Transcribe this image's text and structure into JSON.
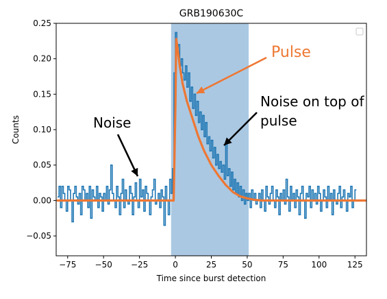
{
  "chart_data": {
    "type": "line",
    "title": "GRB190630C",
    "xlabel": "Time since burst detection",
    "ylabel": "Counts",
    "xlim": [
      -83,
      133
    ],
    "ylim": [
      -0.078,
      0.25
    ],
    "xticks": [
      -75,
      -50,
      -25,
      0,
      25,
      50,
      75,
      100,
      125
    ],
    "xtick_labels": [
      "−75",
      "−50",
      "−25",
      "0",
      "25",
      "50",
      "75",
      "100",
      "125"
    ],
    "yticks": [
      -0.05,
      0.0,
      0.05,
      0.1,
      0.15,
      0.2,
      0.25
    ],
    "ytick_labels": [
      "−0.05",
      "0.00",
      "0.05",
      "0.10",
      "0.15",
      "0.20",
      "0.25"
    ],
    "shaded_region": {
      "x": [
        -3,
        51
      ],
      "color": "#aac8e2"
    },
    "legend": "top-right",
    "series": [
      {
        "style": "steps",
        "color": "#1f77b4",
        "bin_width": 1,
        "x_start": -82,
        "values": [
          0.005,
          0.02,
          -0.01,
          0.02,
          0.01,
          0.0,
          -0.015,
          0.02,
          0.015,
          0.0,
          -0.03,
          0.01,
          0.02,
          0.005,
          -0.005,
          0.01,
          -0.02,
          0.02,
          0.015,
          0.0,
          0.01,
          -0.01,
          0.02,
          -0.025,
          0.015,
          0.005,
          0.0,
          0.02,
          -0.01,
          0.01,
          0.005,
          -0.015,
          0.01,
          0.0,
          0.02,
          -0.005,
          0.015,
          0.05,
          0.01,
          0.0,
          -0.01,
          0.02,
          0.005,
          -0.02,
          0.01,
          0.03,
          -0.01,
          0.015,
          0.0,
          -0.005,
          0.02,
          0.01,
          -0.02,
          0.005,
          0.025,
          0.0,
          -0.01,
          0.03,
          0.005,
          0.015,
          -0.015,
          0.02,
          0.01,
          0.0,
          -0.02,
          0.005,
          0.015,
          0.03,
          -0.005,
          0.0,
          0.01,
          -0.01,
          0.015,
          0.005,
          -0.035,
          0.02,
          0.0,
          -0.02,
          0.03,
          0.01,
          0.045,
          0.18,
          0.237,
          0.21,
          0.22,
          0.19,
          0.2,
          0.18,
          0.17,
          0.19,
          0.16,
          0.18,
          0.14,
          0.16,
          0.13,
          0.15,
          0.12,
          0.14,
          0.11,
          0.125,
          0.1,
          0.12,
          0.09,
          0.11,
          0.08,
          0.09,
          0.07,
          0.085,
          0.06,
          0.075,
          0.05,
          0.065,
          0.045,
          0.055,
          0.04,
          0.05,
          0.03,
          0.08,
          0.035,
          0.045,
          0.02,
          0.04,
          0.015,
          0.03,
          0.01,
          0.025,
          0.005,
          0.02,
          0.0,
          0.015,
          -0.005,
          0.01,
          0.0,
          0.01,
          -0.01,
          0.015,
          0.0,
          0.01,
          -0.005,
          0.0,
          0.01,
          -0.01,
          0.015,
          0.0,
          -0.015,
          0.02,
          0.005,
          -0.005,
          0.01,
          0.02,
          0.0,
          -0.01,
          0.015,
          0.005,
          -0.02,
          0.01,
          0.0,
          0.015,
          -0.005,
          0.03,
          0.005,
          -0.015,
          0.02,
          0.0,
          0.01,
          -0.01,
          0.015,
          0.005,
          -0.02,
          0.01,
          0.02,
          0.0,
          -0.025,
          0.01,
          0.005,
          0.02,
          -0.01,
          0.015,
          0.0,
          0.01,
          -0.005,
          0.02,
          0.01,
          -0.015,
          0.0,
          0.015,
          0.005,
          -0.01,
          0.02,
          0.0,
          0.01,
          -0.02,
          0.015,
          0.0,
          -0.005,
          0.01,
          0.02,
          -0.01,
          0.005,
          0.015,
          0.0,
          -0.015,
          0.01,
          0.005,
          0.02,
          -0.01,
          0.0,
          0.015
        ]
      },
      {
        "style": "line",
        "color": "#ee7733",
        "x": [
          -82,
          -4,
          -1.2,
          0,
          0.6,
          1.5,
          3,
          5,
          8,
          12,
          16,
          20,
          25,
          30,
          35,
          40,
          45,
          50,
          55,
          60,
          70,
          80,
          100,
          133
        ],
        "y": [
          0.0,
          0.0,
          0.0,
          0.13,
          0.228,
          0.215,
          0.19,
          0.165,
          0.14,
          0.115,
          0.09,
          0.07,
          0.05,
          0.035,
          0.022,
          0.012,
          0.006,
          0.003,
          0.001,
          0.0,
          0.0,
          0.0,
          0.0,
          0.0
        ]
      }
    ],
    "annotations": [
      {
        "text": "Noise",
        "kind": "noise"
      },
      {
        "text": "Pulse",
        "kind": "pulse"
      },
      {
        "text": "Noise on top of",
        "kind": "noise-top-1"
      },
      {
        "text": "pulse",
        "kind": "noise-top-2"
      }
    ]
  }
}
